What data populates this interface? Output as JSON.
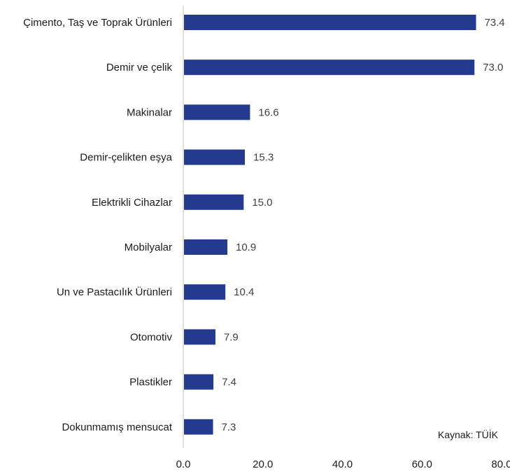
{
  "chart_data": {
    "type": "bar",
    "orientation": "horizontal",
    "categories": [
      "Çimento, Taş ve Toprak Ürünleri",
      "Demir ve çelik",
      "Makinalar",
      "Demir-çelikten eşya",
      "Elektrikli Cihazlar",
      "Mobilyalar",
      "Un ve Pastacılık Ürünleri",
      "Otomotiv",
      "Plastikler",
      "Dokunmamış mensucat"
    ],
    "values": [
      73.4,
      73.0,
      16.6,
      15.3,
      15.0,
      10.9,
      10.4,
      7.9,
      7.4,
      7.3
    ],
    "value_labels": [
      "73.4",
      "73.0",
      "16.6",
      "15.3",
      "15.0",
      "10.9",
      "10.4",
      "7.9",
      "7.4",
      "7.3"
    ],
    "xlim": [
      0,
      80
    ],
    "x_ticks": [
      "0.0",
      "20.0",
      "40.0",
      "60.0",
      "80.0"
    ],
    "x_tick_values": [
      0,
      20,
      40,
      60,
      80
    ],
    "grid": false,
    "bar_color": "#233a8f",
    "source_note": "Kaynak: TÜİK"
  }
}
